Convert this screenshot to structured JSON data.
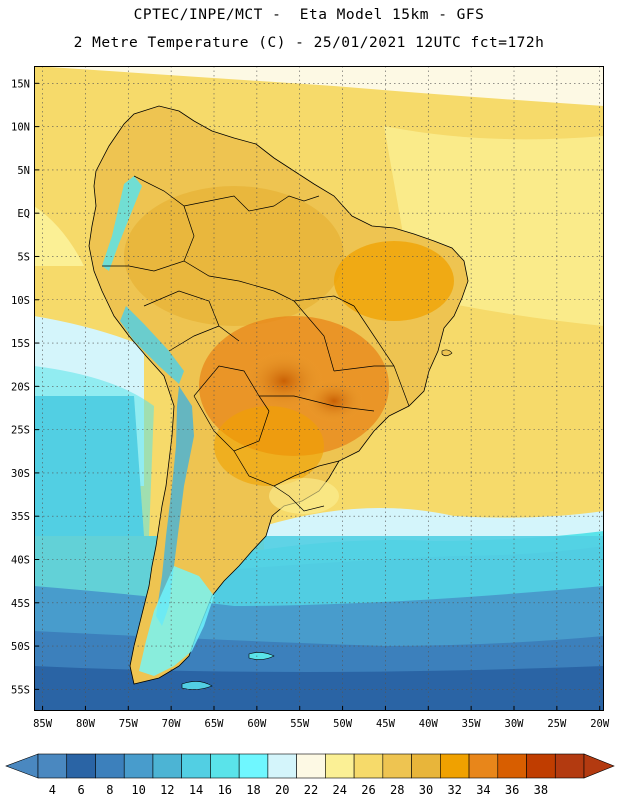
{
  "header": {
    "line1": "CPTEC/INPE/MCT -  Eta Model 15km - GFS",
    "line2": "2 Metre Temperature (C) - 25/01/2021 12UTC fct=172h"
  },
  "map": {
    "lat_labels": [
      "15N",
      "10N",
      "5N",
      "EQ",
      "5S",
      "10S",
      "15S",
      "20S",
      "25S",
      "30S",
      "35S",
      "40S",
      "45S",
      "50S",
      "55S"
    ],
    "lon_labels": [
      "85W",
      "80W",
      "75W",
      "70W",
      "65W",
      "60W",
      "55W",
      "50W",
      "45W",
      "40W",
      "35W",
      "30W",
      "25W",
      "20W"
    ],
    "lat_values": [
      15,
      10,
      5,
      0,
      -5,
      -10,
      -15,
      -20,
      -25,
      -30,
      -35,
      -40,
      -45,
      -50,
      -55
    ],
    "lon_values": [
      -85,
      -80,
      -75,
      -70,
      -65,
      -60,
      -55,
      -50,
      -45,
      -40,
      -35,
      -30,
      -25,
      -20
    ],
    "extent": {
      "lon_min": -86,
      "lon_max": -19.5,
      "lat_min": -57.5,
      "lat_max": 17
    }
  },
  "colorbar": {
    "labels": [
      "4",
      "6",
      "8",
      "10",
      "12",
      "14",
      "16",
      "18",
      "20",
      "22",
      "24",
      "26",
      "28",
      "30",
      "32",
      "34",
      "36",
      "38"
    ],
    "colors": [
      "#4a88c0",
      "#2a64a5",
      "#3c80bc",
      "#489ccc",
      "#4cb4d4",
      "#52cfe3",
      "#5ae3ea",
      "#6ff7ff",
      "#d4f5fb",
      "#fdf9e4",
      "#fbf095",
      "#f6da6a",
      "#eec451",
      "#e8b53a",
      "#f0a100",
      "#e8861a",
      "#d85e00",
      "#c03d00",
      "#b33a10"
    ]
  }
}
